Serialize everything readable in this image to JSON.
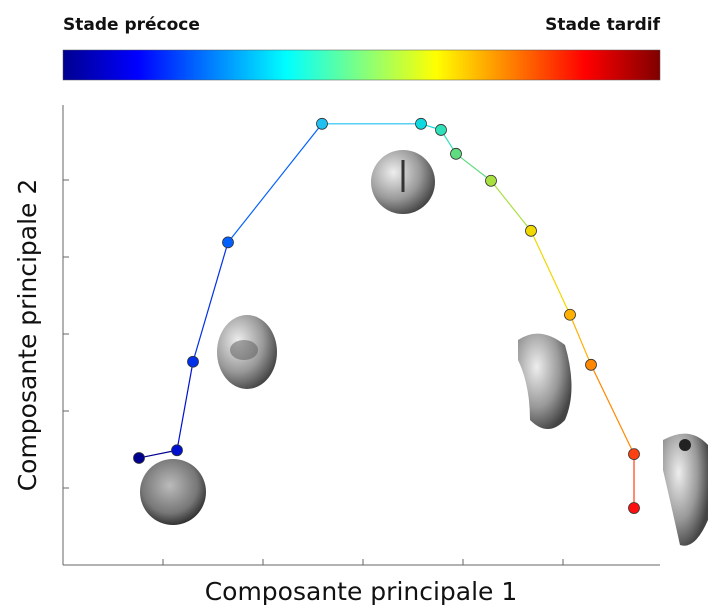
{
  "chart_data": {
    "type": "line",
    "colorbar_labels": [
      "Stade précoce",
      "Stade tardif"
    ],
    "colormap": [
      "#00008f",
      "#0000ff",
      "#0080ff",
      "#00ffff",
      "#80ff80",
      "#ffff00",
      "#ff8000",
      "#ff0000",
      "#800000"
    ],
    "xlabel": "Composante principale 1",
    "ylabel": "Composante principale 2",
    "x": [
      0.76,
      1.14,
      1.3,
      1.65,
      2.59,
      3.58,
      3.78,
      3.93,
      4.28,
      4.68,
      5.07,
      5.28,
      5.71,
      5.71
    ],
    "series": [
      {
        "values": [
          1.39,
          1.49,
          2.64,
          4.19,
          5.73,
          5.73,
          5.65,
          5.34,
          4.99,
          4.34,
          3.25,
          2.6,
          1.44,
          0.74
        ],
        "colors": [
          "#00008f",
          "#0010d0",
          "#0030e8",
          "#0060ff",
          "#20c0f0",
          "#10d8e0",
          "#30e0b8",
          "#60dc80",
          "#a8e040",
          "#f0d800",
          "#ffb000",
          "#ff8800",
          "#ff4010",
          "#ff1010"
        ]
      }
    ],
    "xlim": [
      0,
      6
    ],
    "ylim": [
      0,
      6
    ],
    "xticks": [
      1,
      2,
      3,
      4,
      5
    ],
    "yticks": [
      1,
      2,
      3,
      4,
      5
    ]
  }
}
